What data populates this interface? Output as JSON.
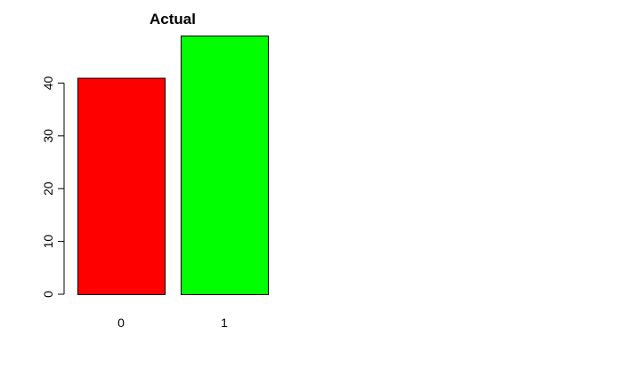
{
  "chart_data": {
    "type": "bar",
    "title": "Actual",
    "xlabel": "",
    "ylabel": "",
    "categories": [
      "0",
      "1"
    ],
    "values": [
      41,
      49
    ],
    "colors": [
      "#ff0000",
      "#00ff00"
    ],
    "ylim": [
      0,
      49
    ],
    "y_ticks": [
      0,
      10,
      20,
      30,
      40
    ],
    "grid": false,
    "legend": "none"
  }
}
